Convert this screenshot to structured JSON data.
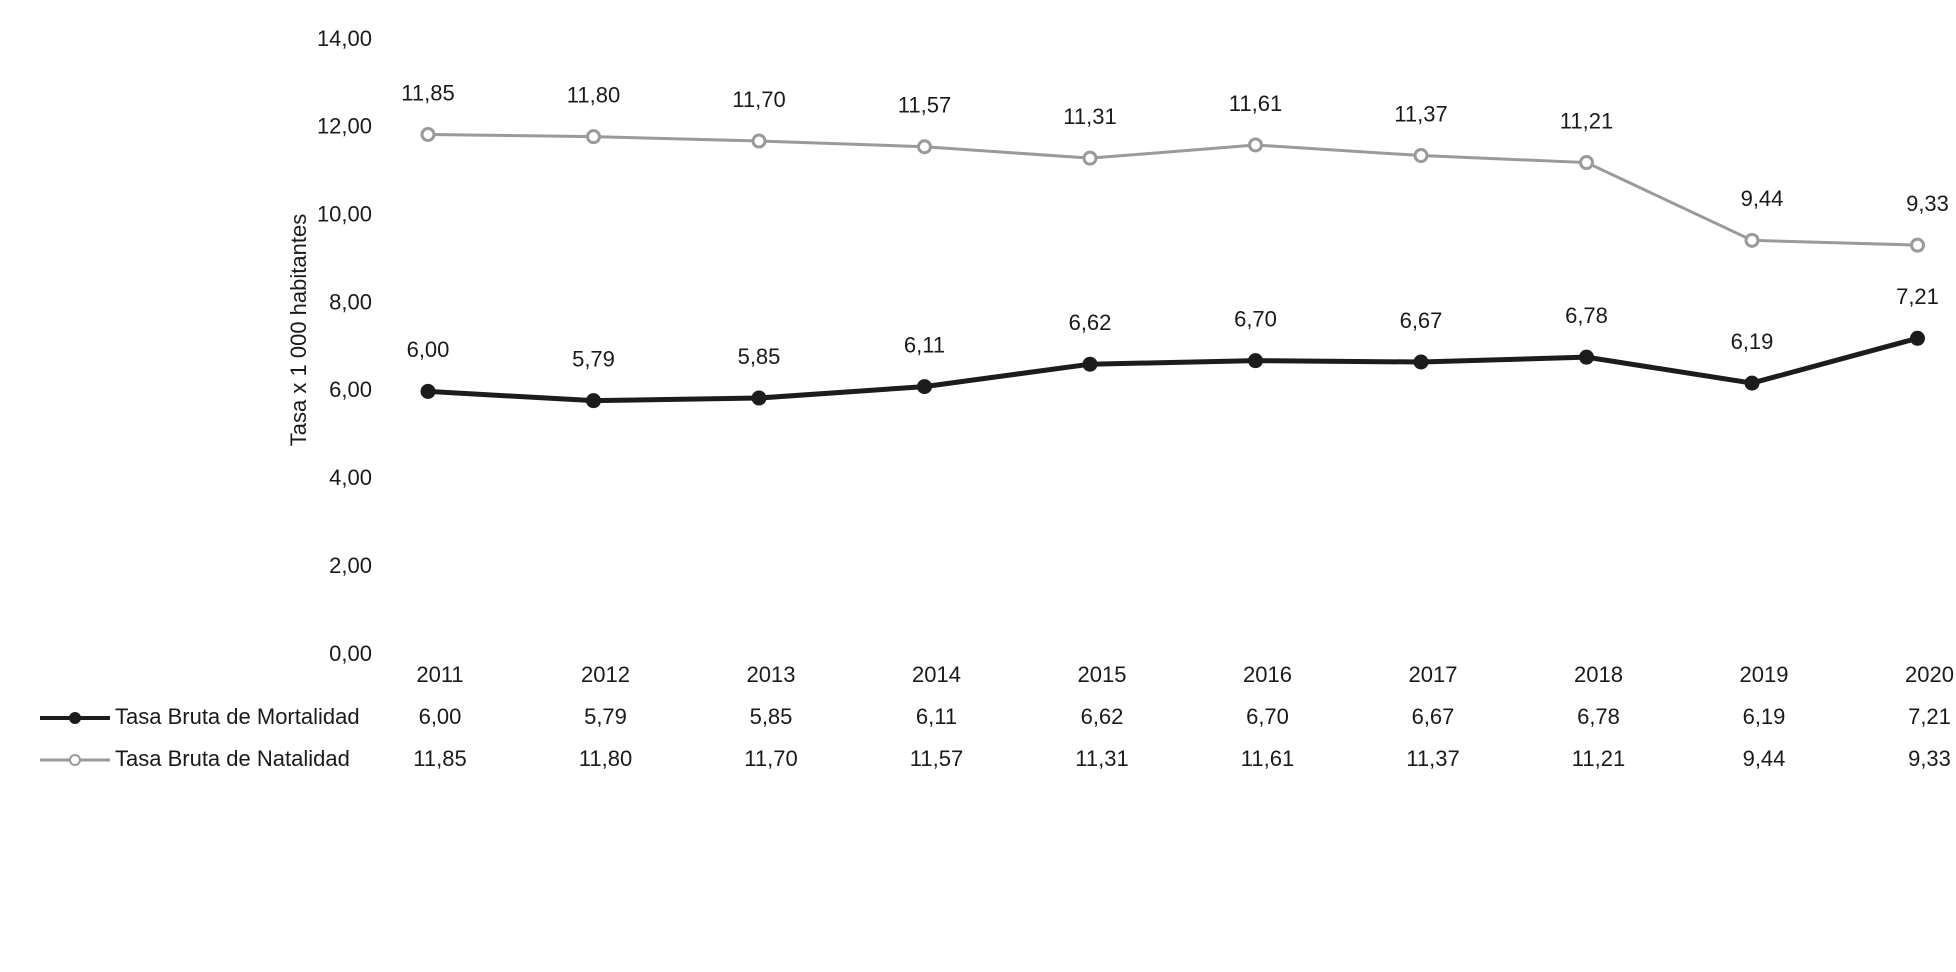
{
  "chart_data": {
    "type": "line",
    "y_label": "Tasa x 1 000 habitantes",
    "categories": [
      "2011",
      "2012",
      "2013",
      "2014",
      "2015",
      "2016",
      "2017",
      "2018",
      "2019",
      "2020"
    ],
    "series": [
      {
        "name": "Tasa Bruta de Mortalidad",
        "color": "#1c1c1c",
        "values": [
          6.0,
          5.79,
          5.85,
          6.11,
          6.62,
          6.7,
          6.67,
          6.78,
          6.19,
          7.21
        ],
        "value_labels": [
          "6,00",
          "5,79",
          "5,85",
          "6,11",
          "6,62",
          "6,70",
          "6,67",
          "6,78",
          "6,19",
          "7,21"
        ]
      },
      {
        "name": "Tasa Bruta de Natalidad",
        "color": "#9a9a9a",
        "values": [
          11.85,
          11.8,
          11.7,
          11.57,
          11.31,
          11.61,
          11.37,
          11.21,
          9.44,
          9.33
        ],
        "value_labels": [
          "11,85",
          "11,80",
          "11,70",
          "11,57",
          "11,31",
          "11,61",
          "11,37",
          "11,21",
          "9,44",
          "9,33"
        ]
      }
    ],
    "ylim": [
      0,
      14
    ],
    "yticks": [
      {
        "value": 0,
        "label": "0,00"
      },
      {
        "value": 2,
        "label": "2,00"
      },
      {
        "value": 4,
        "label": "4,00"
      },
      {
        "value": 6,
        "label": "6,00"
      },
      {
        "value": 8,
        "label": "8,00"
      },
      {
        "value": 10,
        "label": "10,00"
      },
      {
        "value": 12,
        "label": "12,00"
      },
      {
        "value": 14,
        "label": "14,00"
      }
    ],
    "grid": false
  }
}
